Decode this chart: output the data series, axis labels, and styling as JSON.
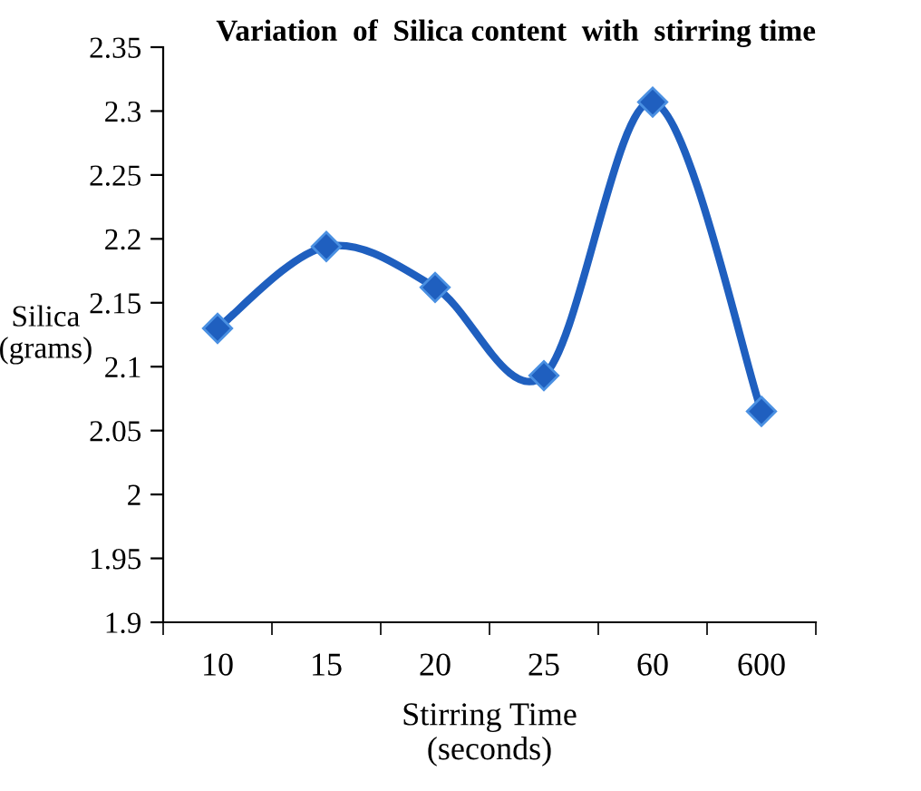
{
  "chart_data": {
    "type": "line",
    "title": "Variation  of  Silica content  with  stirring time",
    "xlabel": "Stirring Time\n(seconds)",
    "ylabel": "Silica\n(grams)",
    "categories": [
      "10",
      "15",
      "20",
      "25",
      "60",
      "600"
    ],
    "series": [
      {
        "color": "#1f5fbf",
        "values": [
          2.13,
          2.194,
          2.162,
          2.093,
          2.307,
          2.065
        ]
      }
    ],
    "ylim": [
      1.9,
      2.35
    ],
    "yticks": [
      1.9,
      1.95,
      2,
      2.05,
      2.1,
      2.15,
      2.2,
      2.25,
      2.3,
      2.35
    ],
    "grid": false,
    "legend": false,
    "marker": "diamond",
    "line_style": "solid"
  }
}
